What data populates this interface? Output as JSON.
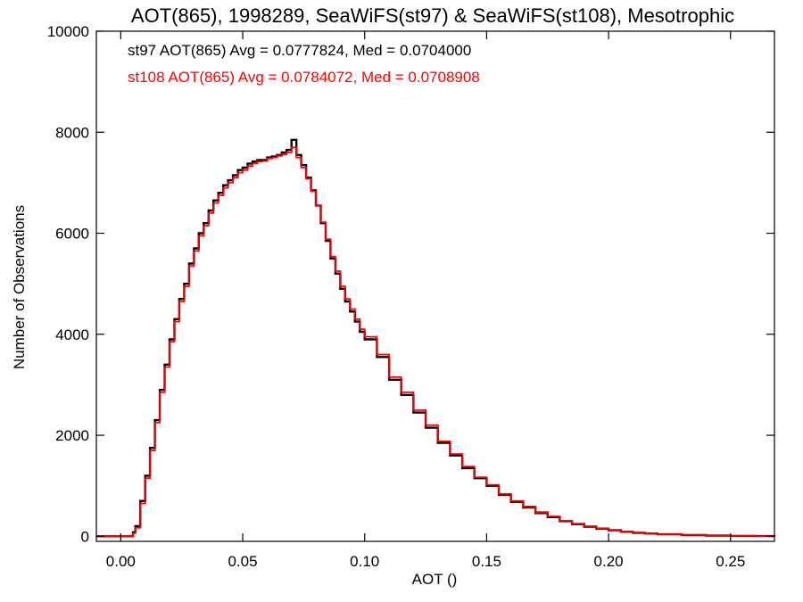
{
  "chart_data": {
    "type": "line",
    "title": "AOT(865), 1998289, SeaWiFS(st97) & SeaWiFS(st108), Mesotrophic",
    "xlabel": "AOT ()",
    "ylabel": "Number of Observations",
    "xlim": [
      -0.01,
      0.268
    ],
    "ylim": [
      -100,
      10000
    ],
    "xticks": [
      "0.00",
      "0.05",
      "0.10",
      "0.15",
      "0.20",
      "0.25"
    ],
    "xtick_values": [
      0.0,
      0.05,
      0.1,
      0.15,
      0.2,
      0.25
    ],
    "yticks": [
      "0",
      "2000",
      "4000",
      "6000",
      "8000",
      "10000"
    ],
    "ytick_values": [
      0,
      2000,
      4000,
      6000,
      8000,
      10000
    ],
    "grid": false,
    "annotations": [
      {
        "text": "st97 AOT(865) Avg = 0.0777824, Med = 0.0704000",
        "color": "#000000"
      },
      {
        "text": "st108 AOT(865) Avg = 0.0784072, Med = 0.0708908",
        "color": "#ff0000"
      }
    ],
    "series": [
      {
        "color": "#000000",
        "x": [
          -0.01,
          0.0,
          0.004,
          0.005,
          0.006,
          0.008,
          0.01,
          0.012,
          0.014,
          0.016,
          0.018,
          0.02,
          0.022,
          0.024,
          0.026,
          0.028,
          0.03,
          0.032,
          0.034,
          0.036,
          0.038,
          0.04,
          0.042,
          0.044,
          0.046,
          0.048,
          0.05,
          0.052,
          0.054,
          0.056,
          0.058,
          0.06,
          0.062,
          0.064,
          0.066,
          0.068,
          0.07,
          0.072,
          0.074,
          0.076,
          0.078,
          0.08,
          0.082,
          0.084,
          0.086,
          0.088,
          0.09,
          0.092,
          0.094,
          0.096,
          0.098,
          0.1,
          0.105,
          0.11,
          0.115,
          0.12,
          0.125,
          0.13,
          0.135,
          0.14,
          0.145,
          0.15,
          0.155,
          0.16,
          0.165,
          0.17,
          0.175,
          0.18,
          0.185,
          0.19,
          0.195,
          0.2,
          0.205,
          0.21,
          0.215,
          0.22,
          0.23,
          0.24,
          0.25,
          0.26,
          0.268
        ],
        "y": [
          0,
          0,
          0,
          80,
          200,
          700,
          1200,
          1750,
          2300,
          2900,
          3400,
          3900,
          4300,
          4700,
          5000,
          5400,
          5700,
          6000,
          6200,
          6450,
          6650,
          6800,
          6950,
          7050,
          7150,
          7250,
          7300,
          7380,
          7420,
          7450,
          7450,
          7500,
          7520,
          7550,
          7600,
          7650,
          7850,
          7550,
          7350,
          7100,
          6850,
          6550,
          6200,
          5850,
          5500,
          5200,
          4900,
          4650,
          4450,
          4250,
          4050,
          3900,
          3550,
          3100,
          2800,
          2450,
          2150,
          1850,
          1600,
          1350,
          1150,
          1000,
          820,
          680,
          570,
          460,
          380,
          300,
          240,
          190,
          150,
          120,
          90,
          70,
          55,
          40,
          25,
          15,
          8,
          4,
          2
        ]
      },
      {
        "color": "#ff0000",
        "x": [
          -0.01,
          0.0,
          0.004,
          0.005,
          0.006,
          0.008,
          0.01,
          0.012,
          0.014,
          0.016,
          0.018,
          0.02,
          0.022,
          0.024,
          0.026,
          0.028,
          0.03,
          0.032,
          0.034,
          0.036,
          0.038,
          0.04,
          0.042,
          0.044,
          0.046,
          0.048,
          0.05,
          0.052,
          0.054,
          0.056,
          0.058,
          0.06,
          0.062,
          0.064,
          0.066,
          0.068,
          0.07,
          0.072,
          0.074,
          0.076,
          0.078,
          0.08,
          0.082,
          0.084,
          0.086,
          0.088,
          0.09,
          0.092,
          0.094,
          0.096,
          0.098,
          0.1,
          0.105,
          0.11,
          0.115,
          0.12,
          0.125,
          0.13,
          0.135,
          0.14,
          0.145,
          0.15,
          0.155,
          0.16,
          0.165,
          0.17,
          0.175,
          0.18,
          0.185,
          0.19,
          0.195,
          0.2,
          0.205,
          0.21,
          0.215,
          0.22,
          0.23,
          0.24,
          0.25,
          0.26,
          0.268
        ],
        "y": [
          0,
          0,
          0,
          60,
          170,
          650,
          1150,
          1700,
          2250,
          2850,
          3350,
          3850,
          4250,
          4650,
          4950,
          5350,
          5650,
          5950,
          6150,
          6400,
          6600,
          6750,
          6900,
          7000,
          7100,
          7200,
          7250,
          7330,
          7380,
          7420,
          7430,
          7480,
          7500,
          7530,
          7560,
          7600,
          7700,
          7500,
          7300,
          7080,
          6830,
          6550,
          6220,
          5880,
          5540,
          5250,
          4950,
          4700,
          4500,
          4300,
          4100,
          3950,
          3600,
          3150,
          2850,
          2500,
          2200,
          1880,
          1630,
          1380,
          1170,
          1020,
          840,
          700,
          590,
          480,
          395,
          310,
          250,
          200,
          160,
          125,
          95,
          75,
          58,
          42,
          28,
          17,
          9,
          5,
          2
        ]
      }
    ]
  }
}
